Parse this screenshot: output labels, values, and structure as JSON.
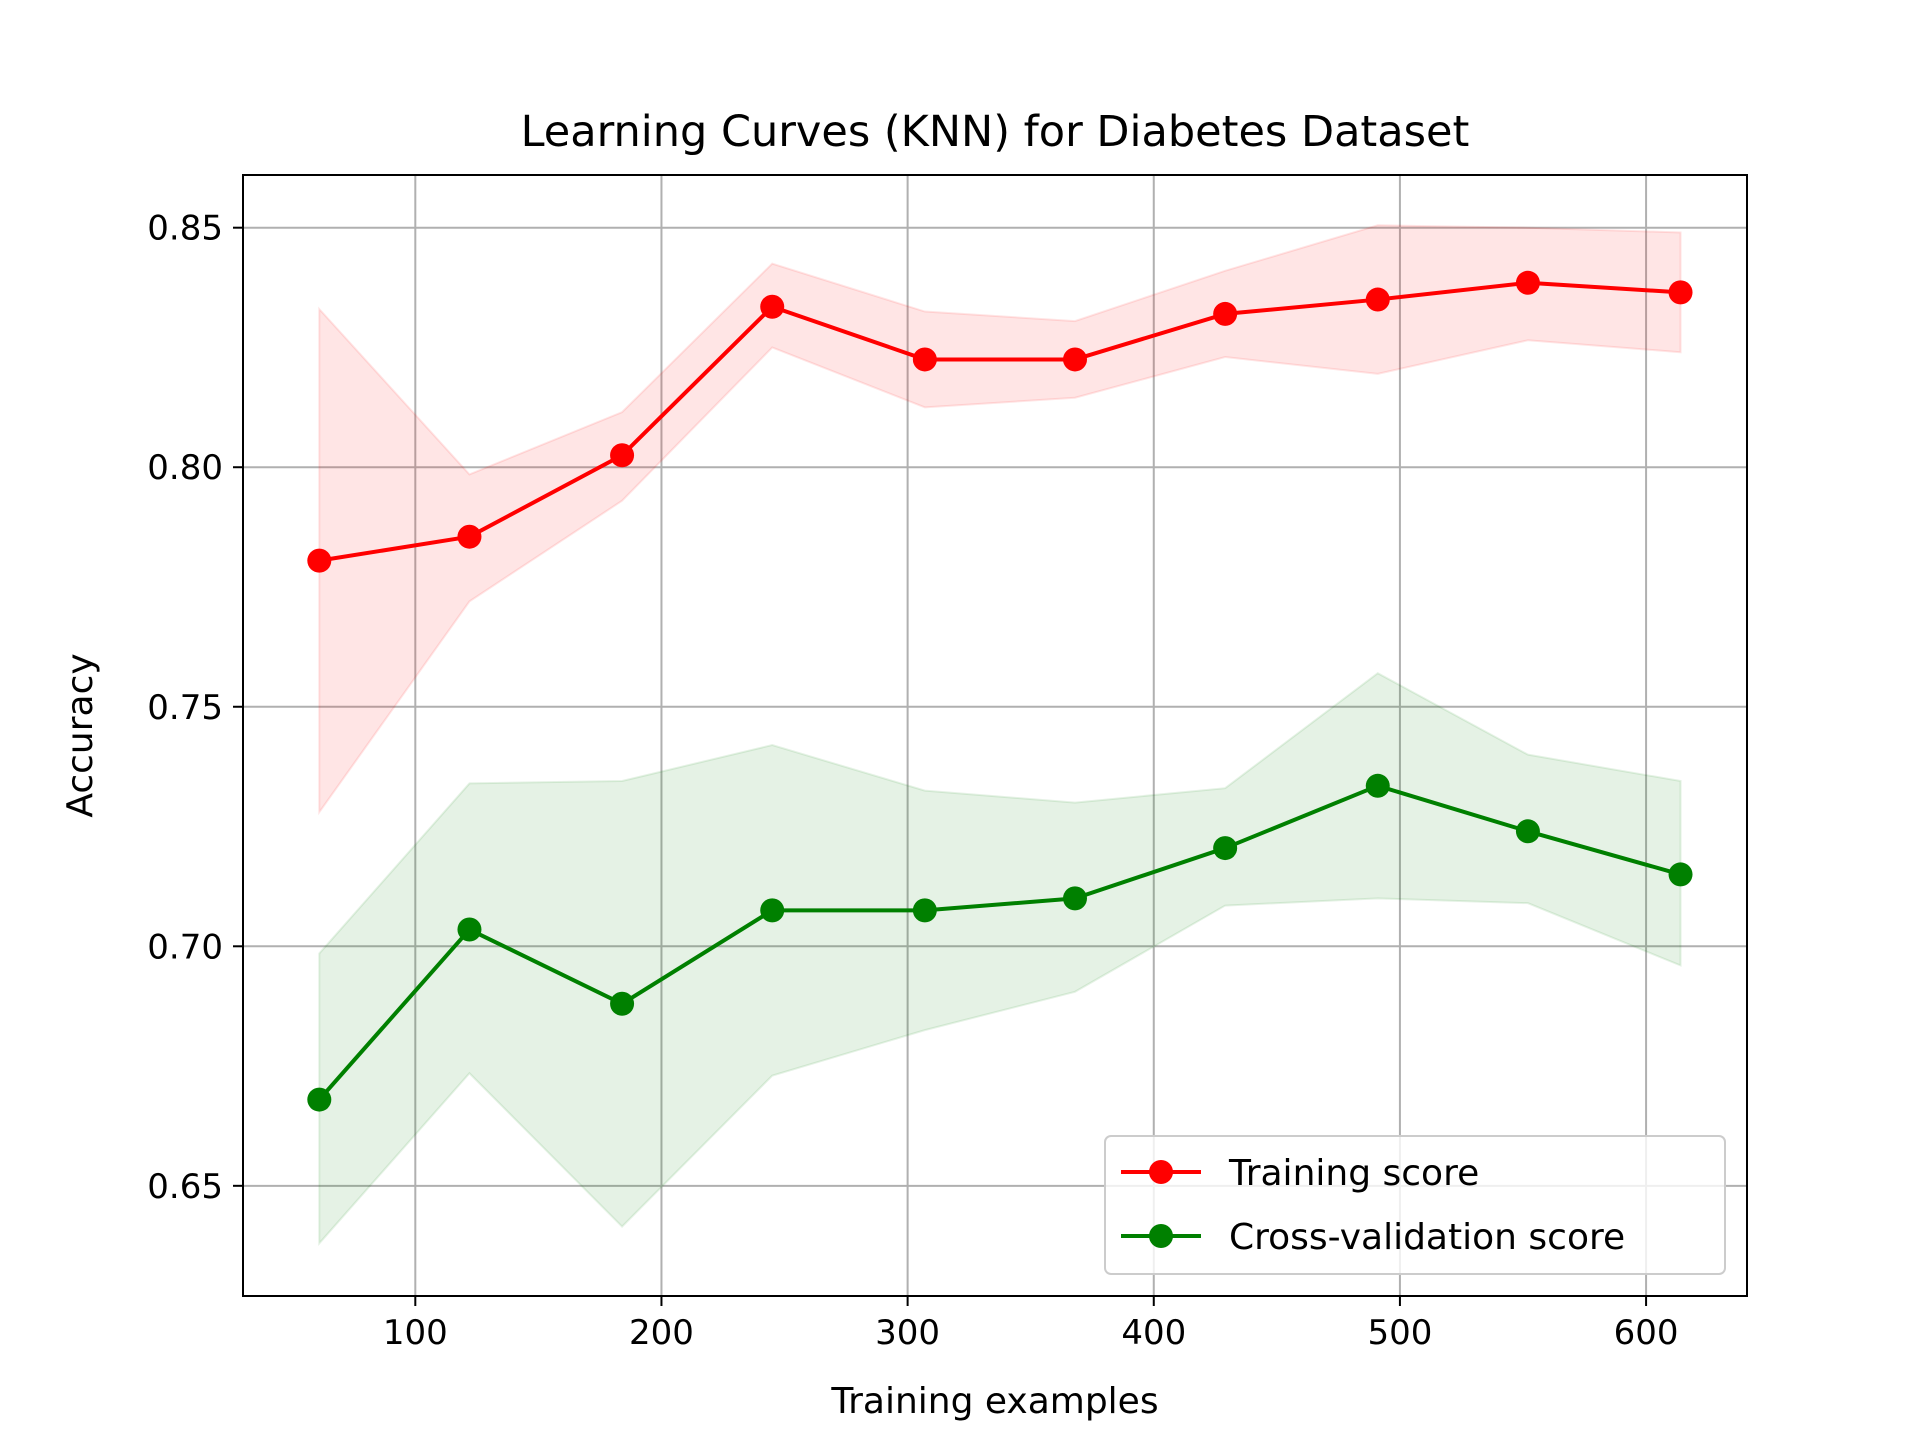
{
  "chart_data": {
    "type": "line",
    "title": "Learning Curves (KNN) for Diabetes Dataset",
    "xlabel": "Training examples",
    "ylabel": "Accuracy",
    "xlim": [
      30,
      641
    ],
    "ylim": [
      0.627,
      0.861
    ],
    "xticks": [
      100,
      200,
      300,
      400,
      500,
      600
    ],
    "xtick_labels": [
      "100",
      "200",
      "300",
      "400",
      "500",
      "600"
    ],
    "yticks": [
      0.65,
      0.7,
      0.75,
      0.8,
      0.85
    ],
    "ytick_labels": [
      "0.65",
      "0.70",
      "0.75",
      "0.80",
      "0.85"
    ],
    "grid": true,
    "legend_position": "lower-right",
    "x": [
      61,
      122,
      184,
      245,
      307,
      368,
      429,
      491,
      552,
      614
    ],
    "series": [
      {
        "name": "Training score",
        "color": "#ff0000",
        "band_color": "#ff0000",
        "values": [
          0.7805,
          0.7855,
          0.8025,
          0.8335,
          0.8225,
          0.8225,
          0.832,
          0.835,
          0.8385,
          0.8365
        ],
        "upper": [
          0.833,
          0.7985,
          0.8115,
          0.8425,
          0.8325,
          0.8305,
          0.841,
          0.8505,
          0.85,
          0.849
        ],
        "lower": [
          0.728,
          0.772,
          0.793,
          0.825,
          0.8125,
          0.8145,
          0.823,
          0.8195,
          0.8265,
          0.824
        ]
      },
      {
        "name": "Cross-validation score",
        "color": "#008000",
        "band_color": "#008000",
        "values": [
          0.668,
          0.7035,
          0.688,
          0.7075,
          0.7075,
          0.71,
          0.7205,
          0.7335,
          0.724,
          0.715
        ],
        "upper": [
          0.6985,
          0.734,
          0.7345,
          0.742,
          0.7325,
          0.73,
          0.733,
          0.757,
          0.74,
          0.7345
        ],
        "lower": [
          0.638,
          0.6735,
          0.6415,
          0.673,
          0.6825,
          0.6905,
          0.7085,
          0.71,
          0.709,
          0.696
        ]
      }
    ]
  }
}
